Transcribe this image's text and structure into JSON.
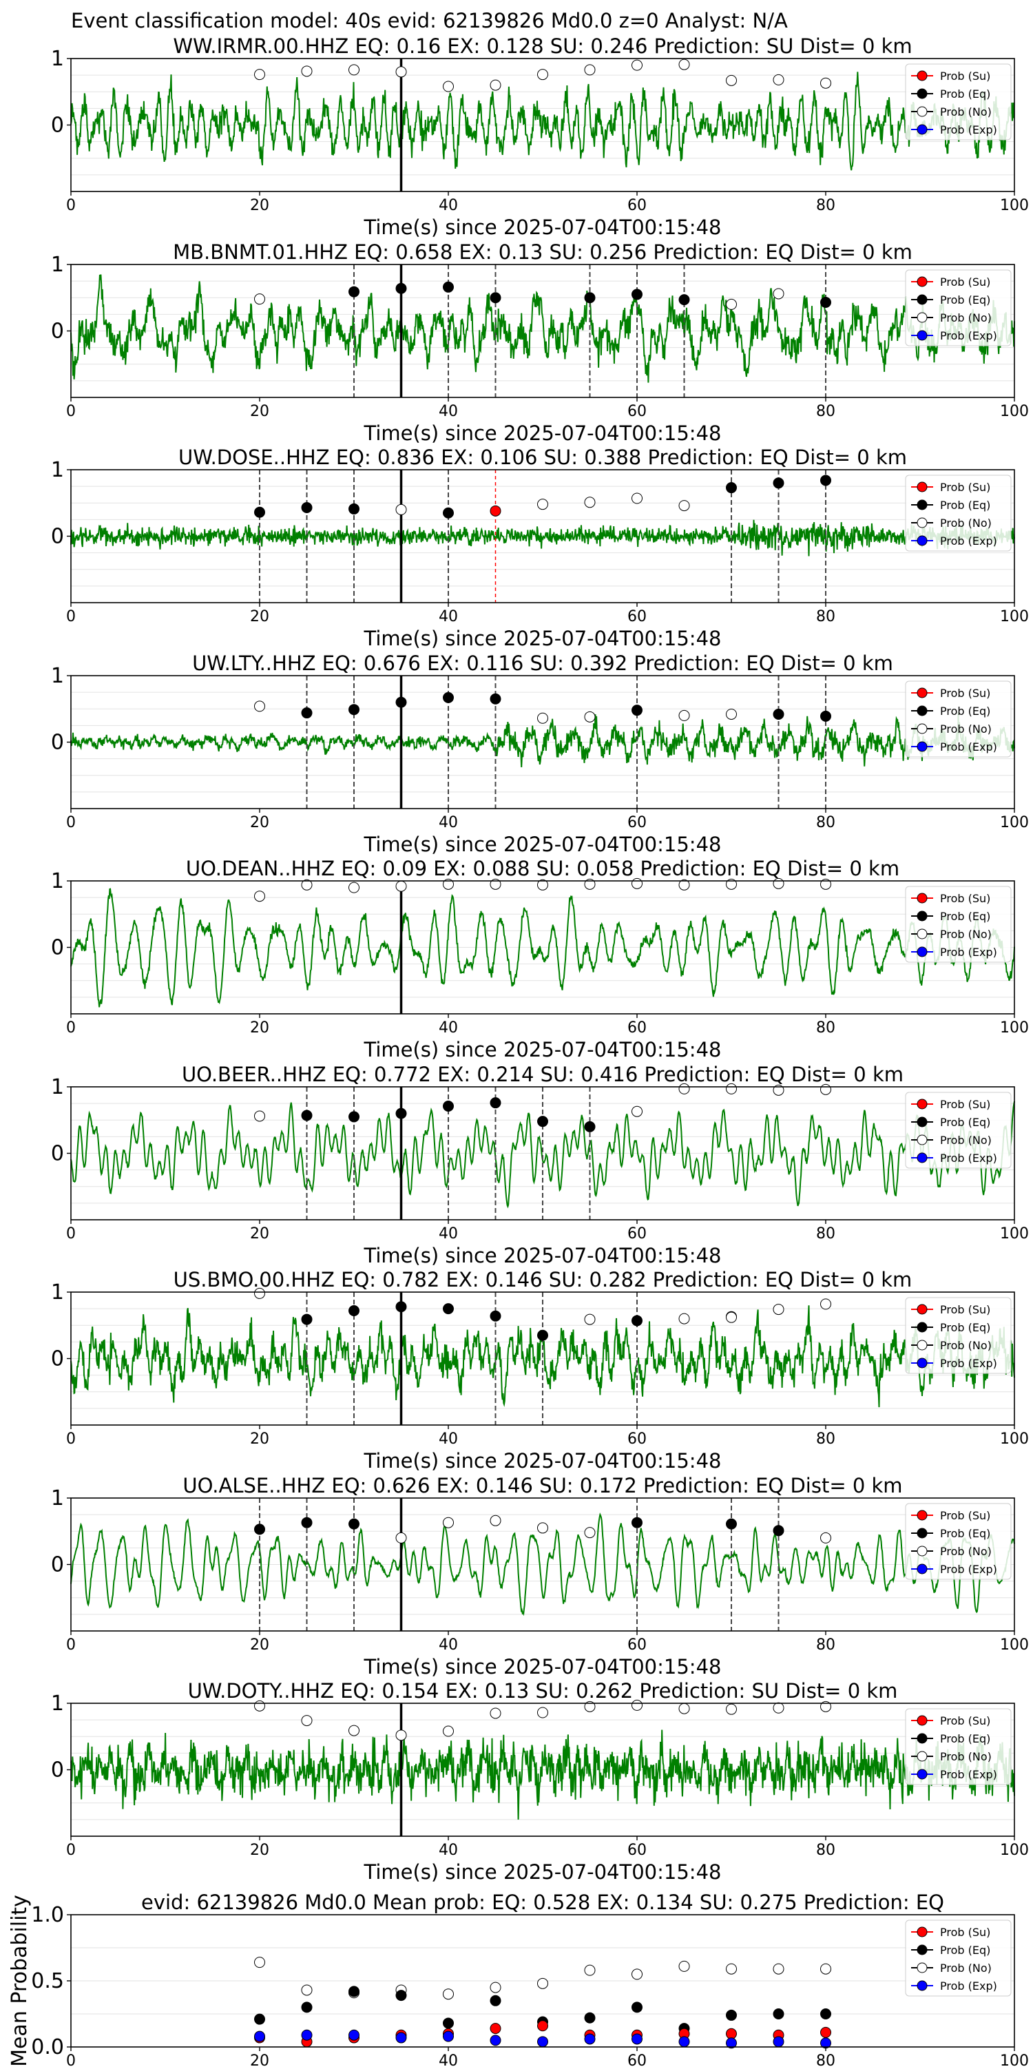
{
  "figure": {
    "suptitle": "Event classification model: 40s evid: 62139826 Md0.0 z=0 Analyst: N/A"
  },
  "legend": {
    "entries": [
      {
        "label": "Prob (Su)",
        "face": "#ff0000"
      },
      {
        "label": "Prob (Eq)",
        "face": "#000000"
      },
      {
        "label": "Prob (No)",
        "face": "#ffffff"
      },
      {
        "label": "Prob (Exp)",
        "face": "#0000ff"
      }
    ]
  },
  "chart_data": [
    {
      "type": "line",
      "title": "WW.IRMR.00.HHZ   EQ: 0.16  EX: 0.128  SU: 0.246   Prediction: SU    Dist= 0 km",
      "xlabel": "Time(s) since 2025-07-04T00:15:48",
      "xlim": [
        0,
        100
      ],
      "ylim": [
        -1,
        1
      ],
      "xticks": [
        0,
        20,
        40,
        60,
        80,
        100
      ],
      "yticks": [
        0,
        1
      ],
      "grid": true,
      "legend_position": "top-right",
      "trace_color": "#008000",
      "trace_style": "broadband",
      "trace_amplitude": 0.8,
      "event_line_x": 35,
      "dashed_lines": [],
      "red_dashed_lines": [],
      "series": [
        {
          "name": "Prob (No)",
          "x": [
            20,
            25,
            30,
            35,
            40,
            45,
            50,
            55,
            60,
            65,
            70,
            75,
            80
          ],
          "y": [
            0.76,
            0.81,
            0.83,
            0.8,
            0.58,
            0.6,
            0.76,
            0.83,
            0.9,
            0.91,
            0.67,
            0.68,
            0.63
          ]
        }
      ]
    },
    {
      "type": "line",
      "title": "MB.BNMT.01.HHZ   EQ: 0.658  EX: 0.13  SU: 0.256   Prediction: EQ    Dist= 0 km",
      "xlabel": "Time(s) since 2025-07-04T00:15:48",
      "xlim": [
        0,
        100
      ],
      "ylim": [
        -1,
        1
      ],
      "xticks": [
        0,
        20,
        40,
        60,
        80,
        100
      ],
      "yticks": [
        0,
        1
      ],
      "grid": true,
      "legend_position": "top-right",
      "trace_color": "#008000",
      "trace_style": "broadband",
      "trace_amplitude": 0.85,
      "event_line_x": 35,
      "dashed_lines": [
        30,
        40,
        45,
        55,
        60,
        65,
        80
      ],
      "red_dashed_lines": [],
      "series": [
        {
          "name": "Prob (Eq)",
          "x": [
            30,
            35,
            40,
            45,
            55,
            60,
            65,
            80
          ],
          "y": [
            0.59,
            0.64,
            0.66,
            0.5,
            0.5,
            0.55,
            0.47,
            0.43
          ]
        },
        {
          "name": "Prob (No)",
          "x": [
            20,
            70,
            75
          ],
          "y": [
            0.48,
            0.4,
            0.56
          ]
        }
      ]
    },
    {
      "type": "line",
      "title": "UW.DOSE..HHZ   EQ: 0.836  EX: 0.106  SU: 0.388   Prediction: EQ    Dist= 0 km",
      "xlabel": "Time(s) since 2025-07-04T00:15:48",
      "xlim": [
        0,
        100
      ],
      "ylim": [
        -1,
        1
      ],
      "xticks": [
        0,
        20,
        40,
        60,
        80,
        100
      ],
      "yticks": [
        0,
        1
      ],
      "grid": true,
      "legend_position": "top-right",
      "trace_color": "#008000",
      "trace_style": "noise",
      "trace_amplitude": 0.3,
      "event_line_x": 35,
      "dashed_lines": [
        20,
        25,
        30,
        40,
        70,
        75,
        80
      ],
      "red_dashed_lines": [
        45
      ],
      "series": [
        {
          "name": "Prob (Su)",
          "x": [
            45
          ],
          "y": [
            0.38
          ]
        },
        {
          "name": "Prob (Eq)",
          "x": [
            20,
            25,
            30,
            40,
            70,
            75,
            80
          ],
          "y": [
            0.36,
            0.43,
            0.41,
            0.35,
            0.73,
            0.8,
            0.84
          ]
        },
        {
          "name": "Prob (No)",
          "x": [
            35,
            50,
            55,
            60,
            65
          ],
          "y": [
            0.4,
            0.48,
            0.51,
            0.57,
            0.46
          ]
        }
      ]
    },
    {
      "type": "line",
      "title": "UW.LTY..HHZ   EQ: 0.676  EX: 0.116  SU: 0.392   Prediction: EQ    Dist= 0 km",
      "xlabel": "Time(s) since 2025-07-04T00:15:48",
      "xlim": [
        0,
        100
      ],
      "ylim": [
        -1,
        1
      ],
      "xticks": [
        0,
        20,
        40,
        60,
        80,
        100
      ],
      "yticks": [
        0,
        1
      ],
      "grid": true,
      "legend_position": "top-right",
      "trace_color": "#008000",
      "trace_style": "low",
      "trace_amplitude": 0.45,
      "event_line_x": 35,
      "dashed_lines": [
        25,
        30,
        40,
        45,
        60,
        75,
        80
      ],
      "red_dashed_lines": [],
      "series": [
        {
          "name": "Prob (Eq)",
          "x": [
            25,
            30,
            35,
            40,
            45,
            60,
            75,
            80
          ],
          "y": [
            0.44,
            0.49,
            0.6,
            0.67,
            0.65,
            0.48,
            0.42,
            0.39
          ]
        },
        {
          "name": "Prob (No)",
          "x": [
            20,
            50,
            55,
            65,
            70
          ],
          "y": [
            0.54,
            0.36,
            0.38,
            0.4,
            0.42
          ]
        }
      ]
    },
    {
      "type": "line",
      "title": "UO.DEAN..HHZ   EQ: 0.09  EX: 0.088  SU: 0.058   Prediction: EQ    Dist= 0 km",
      "xlabel": "Time(s) since 2025-07-04T00:15:48",
      "xlim": [
        0,
        100
      ],
      "ylim": [
        -1,
        1
      ],
      "xticks": [
        0,
        20,
        40,
        60,
        80,
        100
      ],
      "yticks": [
        0,
        1
      ],
      "grid": true,
      "legend_position": "top-right",
      "trace_color": "#008000",
      "trace_style": "oscillating",
      "trace_amplitude": 0.9,
      "event_line_x": 35,
      "dashed_lines": [],
      "red_dashed_lines": [],
      "series": [
        {
          "name": "Prob (No)",
          "x": [
            20,
            25,
            30,
            35,
            40,
            45,
            50,
            55,
            60,
            65,
            70,
            75,
            80
          ],
          "y": [
            0.77,
            0.94,
            0.9,
            0.92,
            0.95,
            0.95,
            0.94,
            0.95,
            0.96,
            0.94,
            0.95,
            0.96,
            0.95
          ]
        }
      ]
    },
    {
      "type": "line",
      "title": "UO.BEER..HHZ   EQ: 0.772  EX: 0.214  SU: 0.416   Prediction: EQ    Dist= 0 km",
      "xlabel": "Time(s) since 2025-07-04T00:15:48",
      "xlim": [
        0,
        100
      ],
      "ylim": [
        -1,
        1
      ],
      "xticks": [
        0,
        20,
        40,
        60,
        80,
        100
      ],
      "yticks": [
        0,
        1
      ],
      "grid": true,
      "legend_position": "top-right",
      "trace_color": "#008000",
      "trace_style": "smooth",
      "trace_amplitude": 0.8,
      "event_line_x": 35,
      "dashed_lines": [
        25,
        30,
        40,
        45,
        50,
        55
      ],
      "red_dashed_lines": [],
      "series": [
        {
          "name": "Prob (Eq)",
          "x": [
            25,
            30,
            35,
            40,
            45,
            50,
            55
          ],
          "y": [
            0.57,
            0.55,
            0.6,
            0.71,
            0.76,
            0.48,
            0.4
          ]
        },
        {
          "name": "Prob (No)",
          "x": [
            20,
            60,
            65,
            70,
            75,
            80
          ],
          "y": [
            0.56,
            0.63,
            0.97,
            0.97,
            0.95,
            0.96
          ]
        }
      ]
    },
    {
      "type": "line",
      "title": "US.BMO.00.HHZ   EQ: 0.782  EX: 0.146  SU: 0.282   Prediction: EQ    Dist= 0 km",
      "xlabel": "Time(s) since 2025-07-04T00:15:48",
      "xlim": [
        0,
        100
      ],
      "ylim": [
        -1,
        1
      ],
      "xticks": [
        0,
        20,
        40,
        60,
        80,
        100
      ],
      "yticks": [
        0,
        1
      ],
      "grid": true,
      "legend_position": "top-right",
      "trace_color": "#008000",
      "trace_style": "broadband",
      "trace_amplitude": 0.8,
      "event_line_x": 35,
      "dashed_lines": [
        25,
        30,
        45,
        50,
        60
      ],
      "red_dashed_lines": [],
      "series": [
        {
          "name": "Prob (Eq)",
          "x": [
            25,
            30,
            35,
            40,
            45,
            50,
            60,
            70
          ],
          "y": [
            0.59,
            0.72,
            0.78,
            0.75,
            0.64,
            0.35,
            0.57,
            0.63
          ]
        },
        {
          "name": "Prob (No)",
          "x": [
            20,
            55,
            65,
            70,
            75,
            80
          ],
          "y": [
            0.98,
            0.59,
            0.6,
            0.62,
            0.74,
            0.82
          ]
        }
      ]
    },
    {
      "type": "line",
      "title": "UO.ALSE..HHZ   EQ: 0.626  EX: 0.146  SU: 0.172   Prediction: EQ    Dist= 0 km",
      "xlabel": "Time(s) since 2025-07-04T00:15:48",
      "xlim": [
        0,
        100
      ],
      "ylim": [
        -1,
        1
      ],
      "xticks": [
        0,
        20,
        40,
        60,
        80,
        100
      ],
      "yticks": [
        0,
        1
      ],
      "grid": true,
      "legend_position": "top-right",
      "trace_color": "#008000",
      "trace_style": "smooth",
      "trace_amplitude": 0.75,
      "event_line_x": 35,
      "dashed_lines": [
        20,
        25,
        30,
        60,
        70,
        75
      ],
      "red_dashed_lines": [],
      "series": [
        {
          "name": "Prob (Eq)",
          "x": [
            20,
            25,
            30,
            60,
            70,
            75
          ],
          "y": [
            0.53,
            0.63,
            0.61,
            0.63,
            0.61,
            0.51
          ]
        },
        {
          "name": "Prob (No)",
          "x": [
            35,
            40,
            45,
            50,
            55,
            80
          ],
          "y": [
            0.4,
            0.63,
            0.66,
            0.55,
            0.48,
            0.4
          ]
        }
      ]
    },
    {
      "type": "line",
      "title": "UW.DOTY..HHZ   EQ: 0.154  EX: 0.13  SU: 0.262   Prediction: SU    Dist= 0 km",
      "xlabel": "Time(s) since 2025-07-04T00:15:48",
      "xlim": [
        0,
        100
      ],
      "ylim": [
        -1,
        1
      ],
      "xticks": [
        0,
        20,
        40,
        60,
        80,
        100
      ],
      "yticks": [
        0,
        1
      ],
      "grid": true,
      "legend_position": "top-right",
      "trace_color": "#008000",
      "trace_style": "noisy",
      "trace_amplitude": 0.75,
      "event_line_x": 35,
      "dashed_lines": [],
      "red_dashed_lines": [],
      "series": [
        {
          "name": "Prob (No)",
          "x": [
            20,
            25,
            30,
            35,
            40,
            45,
            50,
            55,
            60,
            65,
            70,
            75,
            80
          ],
          "y": [
            0.96,
            0.74,
            0.59,
            0.52,
            0.58,
            0.85,
            0.86,
            0.95,
            0.97,
            0.92,
            0.91,
            0.93,
            0.95
          ]
        }
      ]
    },
    {
      "type": "scatter",
      "title": "evid: 62139826  Md0.0   Mean prob:    EQ: 0.528  EX: 0.134  SU: 0.275   Prediction: EQ",
      "xlabel": "",
      "ylabel": "Mean Probability",
      "xlim": [
        0,
        100
      ],
      "ylim": [
        0,
        1
      ],
      "xticks": [
        0,
        20,
        40,
        60,
        80,
        100
      ],
      "yticks": [
        0.0,
        0.5,
        1.0
      ],
      "ytick_labels": [
        "0.0",
        "0.5",
        "1.0"
      ],
      "grid": true,
      "legend_position": "top-right",
      "series": [
        {
          "name": "Prob (No)",
          "x": [
            20,
            25,
            30,
            35,
            40,
            45,
            50,
            55,
            60,
            65,
            70,
            75,
            80
          ],
          "y": [
            0.64,
            0.43,
            0.41,
            0.43,
            0.4,
            0.45,
            0.48,
            0.58,
            0.55,
            0.61,
            0.59,
            0.59,
            0.59
          ]
        },
        {
          "name": "Prob (Eq)",
          "x": [
            20,
            25,
            30,
            35,
            40,
            45,
            50,
            55,
            60,
            65,
            70,
            75,
            80
          ],
          "y": [
            0.21,
            0.3,
            0.42,
            0.39,
            0.18,
            0.35,
            0.19,
            0.22,
            0.3,
            0.14,
            0.24,
            0.25,
            0.25
          ]
        },
        {
          "name": "Prob (Su)",
          "x": [
            20,
            25,
            30,
            35,
            40,
            45,
            50,
            55,
            60,
            65,
            70,
            75,
            80
          ],
          "y": [
            0.07,
            0.04,
            0.07,
            0.09,
            0.1,
            0.14,
            0.16,
            0.09,
            0.09,
            0.1,
            0.1,
            0.09,
            0.11
          ]
        },
        {
          "name": "Prob (Exp)",
          "x": [
            20,
            25,
            30,
            35,
            40,
            45,
            50,
            55,
            60,
            65,
            70,
            75,
            80
          ],
          "y": [
            0.08,
            0.09,
            0.09,
            0.07,
            0.08,
            0.05,
            0.04,
            0.06,
            0.06,
            0.04,
            0.03,
            0.04,
            0.03
          ]
        }
      ]
    }
  ]
}
